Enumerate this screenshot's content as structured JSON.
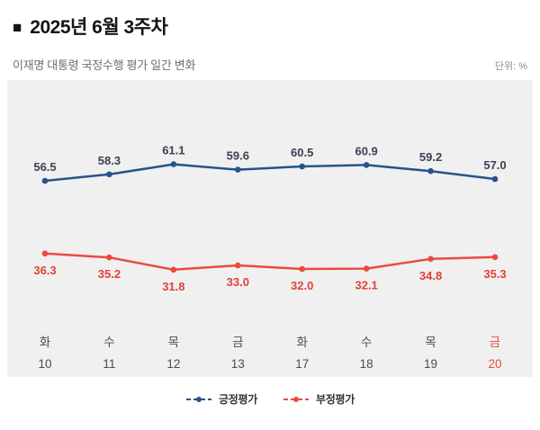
{
  "header": {
    "bullet_icon": "■",
    "title": "2025년 6월 3주차"
  },
  "subheader": {
    "subtitle": "이재명 대통령 국정수행 평가 일간 변화",
    "unit_label": "단위: %"
  },
  "chart_data": {
    "type": "line",
    "x_labels": [
      {
        "day": "화",
        "date": "10"
      },
      {
        "day": "수",
        "date": "11"
      },
      {
        "day": "목",
        "date": "12"
      },
      {
        "day": "금",
        "date": "13"
      },
      {
        "day": "화",
        "date": "17"
      },
      {
        "day": "수",
        "date": "18"
      },
      {
        "day": "목",
        "date": "19"
      },
      {
        "day": "금",
        "date": "20"
      }
    ],
    "series": [
      {
        "name": "긍정평가",
        "color": "#27538a",
        "label_color": "#3a4154",
        "values": [
          56.5,
          58.3,
          61.1,
          59.6,
          60.5,
          60.9,
          59.2,
          57.0
        ]
      },
      {
        "name": "부정평가",
        "color": "#ea4b3f",
        "label_color": "#e04038",
        "values": [
          36.3,
          35.2,
          31.8,
          33.0,
          32.0,
          32.1,
          34.8,
          35.3
        ]
      }
    ],
    "ylim": [
      15,
      75
    ],
    "grid": false,
    "legend_position": "bottom",
    "highlight_last_x": true,
    "highlight_color": "#ea4b3f",
    "panel_background": "#f0f0f0"
  }
}
